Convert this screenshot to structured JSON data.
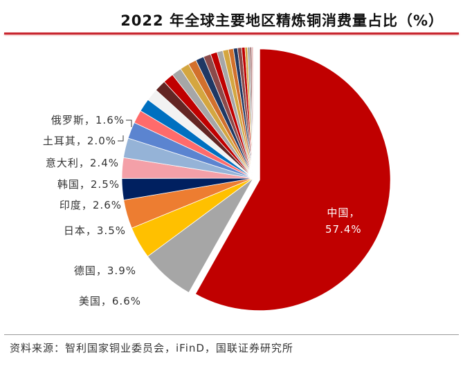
{
  "chart_data": {
    "type": "pie",
    "title": "2022 年全球主要地区精炼铜消费量占比（%）",
    "slices": [
      {
        "name": "中国",
        "value": 57.4,
        "color": "#c00000",
        "exploded": true,
        "label": "中国，",
        "value_label": "57.4%"
      },
      {
        "name": "美国",
        "value": 6.6,
        "color": "#a6a6a6",
        "label": "美国，6.6%"
      },
      {
        "name": "德国",
        "value": 3.9,
        "color": "#ffc000",
        "label": "德国，3.9%"
      },
      {
        "name": "日本",
        "value": 3.5,
        "color": "#ed7d31",
        "label": "日本，3.5%"
      },
      {
        "name": "印度",
        "value": 2.6,
        "color": "#002060",
        "label": "印度，2.6%"
      },
      {
        "name": "韩国",
        "value": 2.5,
        "color": "#f4a0a8",
        "label": "韩国，2.5%"
      },
      {
        "name": "意大利",
        "value": 2.4,
        "color": "#95b3d7",
        "label": "意大利，2.4%"
      },
      {
        "name": "土耳其",
        "value": 2.0,
        "color": "#5b84d0",
        "label": "土耳其，2.0%"
      },
      {
        "name": "俄罗斯",
        "value": 1.6,
        "color": "#ff6b6b",
        "label": "俄罗斯，1.6%"
      },
      {
        "name": "",
        "value": 1.6,
        "color": "#0070c0"
      },
      {
        "name": "",
        "value": 1.5,
        "color": "#f2f2f2"
      },
      {
        "name": "",
        "value": 1.4,
        "color": "#632523"
      },
      {
        "name": "",
        "value": 1.3,
        "color": "#c00000"
      },
      {
        "name": "",
        "value": 1.2,
        "color": "#a6a6a6"
      },
      {
        "name": "",
        "value": 1.1,
        "color": "#d4a640"
      },
      {
        "name": "",
        "value": 1.0,
        "color": "#d2702c"
      },
      {
        "name": "",
        "value": 1.0,
        "color": "#1f3864"
      },
      {
        "name": "",
        "value": 0.9,
        "color": "#8b4a4a"
      },
      {
        "name": "",
        "value": 0.8,
        "color": "#c00000"
      },
      {
        "name": "",
        "value": 0.7,
        "color": "#a6a6a6"
      },
      {
        "name": "",
        "value": 0.7,
        "color": "#d4a640"
      },
      {
        "name": "",
        "value": 0.6,
        "color": "#d2702c"
      },
      {
        "name": "",
        "value": 0.5,
        "color": "#1f3864"
      },
      {
        "name": "",
        "value": 0.5,
        "color": "#8b4a4a"
      },
      {
        "name": "",
        "value": 0.4,
        "color": "#c00000"
      },
      {
        "name": "",
        "value": 0.3,
        "color": "#d4a640"
      },
      {
        "name": "",
        "value": 0.3,
        "color": "#a6a6a6"
      },
      {
        "name": "",
        "value": 0.2,
        "color": "#8b4a4a"
      },
      {
        "name": "",
        "value": 0.2,
        "color": "#e6b9b8"
      }
    ]
  },
  "source": "资料来源：智利国家铜业委员会，iFinD，国联证券研究所"
}
